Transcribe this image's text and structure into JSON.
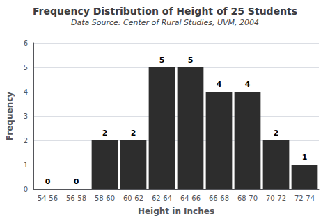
{
  "chart_data": {
    "type": "bar",
    "title": "Frequency Distribution of Height of 25 Students",
    "subtitle": "Data Source: Center of Rural Studies, UVM, 2004",
    "xlabel": "Height in Inches",
    "ylabel": "Frequency",
    "categories": [
      "54-56",
      "56-58",
      "58-60",
      "60-62",
      "62-64",
      "64-66",
      "66-68",
      "68-70",
      "70-72",
      "72-74"
    ],
    "values": [
      0,
      0,
      2,
      2,
      5,
      5,
      4,
      4,
      2,
      1
    ],
    "color": "#2d2d2d",
    "ylim": [
      0,
      6
    ],
    "yticks": [
      0,
      1,
      2,
      3,
      4,
      5,
      6
    ],
    "grid": true,
    "data_labels": true
  }
}
